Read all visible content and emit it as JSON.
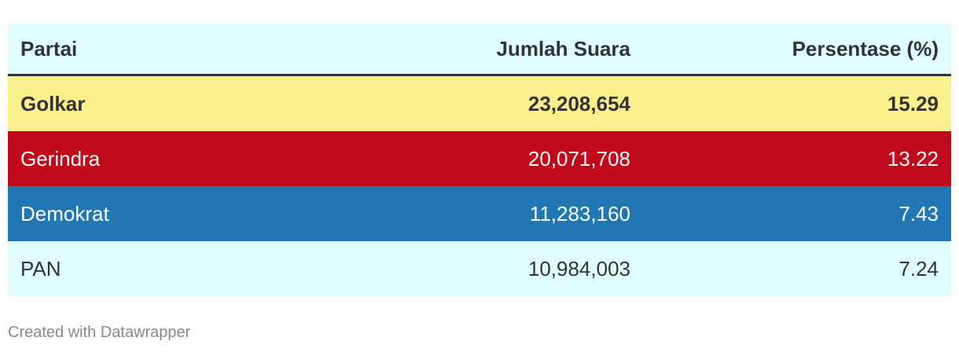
{
  "chart_data": {
    "type": "table",
    "columns": [
      "Partai",
      "Jumlah Suara",
      "Persentase (%)"
    ],
    "rows": [
      {
        "party": "Golkar",
        "votes": "23,208,654",
        "percent": "15.29",
        "bg": "#fbf08e",
        "fg": "#333333",
        "bold": true
      },
      {
        "party": "Gerindra",
        "votes": "20,071,708",
        "percent": "13.22",
        "bg": "#c0091b",
        "fg": "#ffffff",
        "bold": false
      },
      {
        "party": "Demokrat",
        "votes": "11,283,160",
        "percent": "7.43",
        "bg": "#2077b4",
        "fg": "#ffffff",
        "bold": false
      },
      {
        "party": "PAN",
        "votes": "10,984,003",
        "percent": "7.24",
        "bg": "#e1fefe",
        "fg": "#333333",
        "bold": false
      }
    ]
  },
  "footer": {
    "credit": "Created with Datawrapper"
  },
  "colors": {
    "header_bg": "#e1fefe",
    "header_rule": "#333333",
    "text": "#333333",
    "footer_text": "#888888"
  }
}
